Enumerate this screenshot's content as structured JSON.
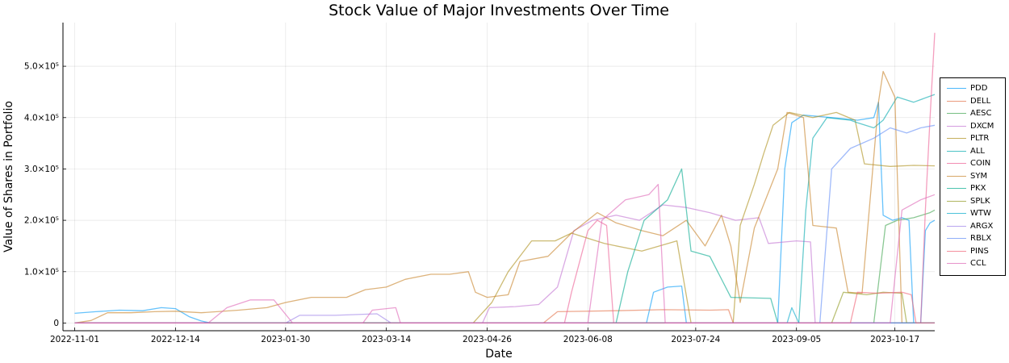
{
  "chart_data": {
    "type": "line",
    "title": "Stock Value of Major Investments Over Time",
    "xlabel": "Date",
    "ylabel": "Value of Shares in Portfolio",
    "x_range": [
      "2022-10-27",
      "2023-11-03"
    ],
    "ylim": [
      -15000,
      585000
    ],
    "x_ticks": [
      "2022-11-01",
      "2022-12-14",
      "2023-01-30",
      "2023-03-14",
      "2023-04-26",
      "2023-06-08",
      "2023-07-24",
      "2023-09-05",
      "2023-10-17"
    ],
    "y_ticks": [
      {
        "value": 0,
        "label": "0"
      },
      {
        "value": 100000,
        "label": "1.0×10⁵"
      },
      {
        "value": 200000,
        "label": "2.0×10⁵"
      },
      {
        "value": 300000,
        "label": "3.0×10⁵"
      },
      {
        "value": 400000,
        "label": "4.0×10⁵"
      },
      {
        "value": 500000,
        "label": "5.0×10⁵"
      }
    ],
    "grid": true,
    "legend_position": "right",
    "series": [
      {
        "name": "PDD",
        "color": "#009af9",
        "points": [
          [
            "2022-11-01",
            19000
          ],
          [
            "2022-11-10",
            22000
          ],
          [
            "2022-11-20",
            25000
          ],
          [
            "2022-11-30",
            24000
          ],
          [
            "2022-12-08",
            30000
          ],
          [
            "2022-12-14",
            28000
          ],
          [
            "2022-12-20",
            12000
          ],
          [
            "2022-12-25",
            4000
          ],
          [
            "2022-12-29",
            0
          ],
          [
            "2023-07-03",
            0
          ],
          [
            "2023-07-06",
            60000
          ],
          [
            "2023-07-12",
            70000
          ],
          [
            "2023-07-18",
            72000
          ],
          [
            "2023-07-20",
            0
          ],
          [
            "2023-08-28",
            0
          ],
          [
            "2023-08-31",
            300000
          ],
          [
            "2023-09-03",
            390000
          ],
          [
            "2023-09-08",
            405000
          ],
          [
            "2023-09-20",
            400000
          ],
          [
            "2023-10-01",
            395000
          ],
          [
            "2023-10-08",
            400000
          ],
          [
            "2023-10-10",
            430000
          ],
          [
            "2023-10-12",
            210000
          ],
          [
            "2023-10-16",
            200000
          ],
          [
            "2023-10-20",
            205000
          ],
          [
            "2023-10-23",
            200000
          ],
          [
            "2023-10-25",
            0
          ],
          [
            "2023-10-28",
            0
          ],
          [
            "2023-10-30",
            180000
          ],
          [
            "2023-11-01",
            195000
          ],
          [
            "2023-11-03",
            200000
          ]
        ]
      },
      {
        "name": "DELL",
        "color": "#e26f46",
        "points": [
          [
            "2022-11-01",
            0
          ],
          [
            "2023-05-20",
            0
          ],
          [
            "2023-05-26",
            22000
          ],
          [
            "2023-06-20",
            24000
          ],
          [
            "2023-07-10",
            26000
          ],
          [
            "2023-07-30",
            25000
          ],
          [
            "2023-08-07",
            26000
          ],
          [
            "2023-08-09",
            0
          ],
          [
            "2023-11-03",
            0
          ]
        ]
      },
      {
        "name": "AESC",
        "color": "#3da44d",
        "points": [
          [
            "2022-11-01",
            0
          ],
          [
            "2023-10-08",
            0
          ],
          [
            "2023-10-13",
            190000
          ],
          [
            "2023-10-18",
            200000
          ],
          [
            "2023-10-25",
            205000
          ],
          [
            "2023-11-01",
            215000
          ],
          [
            "2023-11-03",
            220000
          ]
        ]
      },
      {
        "name": "DXCM",
        "color": "#c271d2",
        "points": [
          [
            "2022-11-01",
            0
          ],
          [
            "2023-04-24",
            0
          ],
          [
            "2023-04-27",
            30000
          ],
          [
            "2023-05-08",
            32000
          ],
          [
            "2023-05-18",
            36000
          ],
          [
            "2023-05-26",
            70000
          ],
          [
            "2023-06-02",
            180000
          ],
          [
            "2023-06-10",
            200000
          ],
          [
            "2023-06-20",
            210000
          ],
          [
            "2023-06-30",
            200000
          ],
          [
            "2023-07-10",
            230000
          ],
          [
            "2023-07-20",
            225000
          ],
          [
            "2023-07-30",
            215000
          ],
          [
            "2023-08-10",
            200000
          ],
          [
            "2023-08-20",
            205000
          ],
          [
            "2023-08-24",
            155000
          ],
          [
            "2023-09-05",
            160000
          ],
          [
            "2023-09-11",
            158000
          ],
          [
            "2023-09-13",
            0
          ],
          [
            "2023-11-03",
            0
          ]
        ]
      },
      {
        "name": "PLTR",
        "color": "#ac8d18",
        "points": [
          [
            "2022-11-01",
            0
          ],
          [
            "2023-04-20",
            0
          ],
          [
            "2023-04-28",
            40000
          ],
          [
            "2023-05-05",
            100000
          ],
          [
            "2023-05-15",
            160000
          ],
          [
            "2023-05-25",
            160000
          ],
          [
            "2023-06-01",
            175000
          ],
          [
            "2023-06-15",
            155000
          ],
          [
            "2023-07-01",
            140000
          ],
          [
            "2023-07-16",
            160000
          ],
          [
            "2023-07-22",
            0
          ],
          [
            "2023-08-09",
            0
          ],
          [
            "2023-08-12",
            190000
          ],
          [
            "2023-08-18",
            270000
          ],
          [
            "2023-08-22",
            330000
          ],
          [
            "2023-08-26",
            385000
          ],
          [
            "2023-09-02",
            410000
          ],
          [
            "2023-09-12",
            400000
          ],
          [
            "2023-09-22",
            410000
          ],
          [
            "2023-09-30",
            395000
          ],
          [
            "2023-10-04",
            310000
          ],
          [
            "2023-10-15",
            305000
          ],
          [
            "2023-10-25",
            307000
          ],
          [
            "2023-11-03",
            306000
          ]
        ]
      },
      {
        "name": "ALL",
        "color": "#00a9ad",
        "points": [
          [
            "2022-11-01",
            0
          ],
          [
            "2023-09-06",
            0
          ],
          [
            "2023-09-09",
            220000
          ],
          [
            "2023-09-12",
            360000
          ],
          [
            "2023-09-18",
            400000
          ],
          [
            "2023-09-28",
            395000
          ],
          [
            "2023-10-01",
            390000
          ],
          [
            "2023-10-08",
            380000
          ],
          [
            "2023-10-12",
            395000
          ],
          [
            "2023-10-18",
            440000
          ],
          [
            "2023-10-25",
            430000
          ],
          [
            "2023-11-03",
            445000
          ]
        ]
      },
      {
        "name": "COIN",
        "color": "#ed5d92",
        "points": [
          [
            "2022-11-01",
            0
          ],
          [
            "2023-05-29",
            0
          ],
          [
            "2023-06-01",
            60000
          ],
          [
            "2023-06-08",
            180000
          ],
          [
            "2023-06-12",
            200000
          ],
          [
            "2023-06-16",
            190000
          ],
          [
            "2023-06-19",
            0
          ],
          [
            "2023-10-28",
            0
          ],
          [
            "2023-10-30",
            220000
          ],
          [
            "2023-11-01",
            400000
          ],
          [
            "2023-11-03",
            565000
          ]
        ]
      },
      {
        "name": "SYM",
        "color": "#c68125",
        "points": [
          [
            "2022-11-01",
            0
          ],
          [
            "2022-11-08",
            5000
          ],
          [
            "2022-11-15",
            20000
          ],
          [
            "2022-11-25",
            20000
          ],
          [
            "2022-12-05",
            22000
          ],
          [
            "2022-12-14",
            23000
          ],
          [
            "2022-12-25",
            20000
          ],
          [
            "2023-01-10",
            25000
          ],
          [
            "2023-01-22",
            30000
          ],
          [
            "2023-01-30",
            40000
          ],
          [
            "2023-02-10",
            50000
          ],
          [
            "2023-02-25",
            50000
          ],
          [
            "2023-03-05",
            65000
          ],
          [
            "2023-03-14",
            70000
          ],
          [
            "2023-03-22",
            85000
          ],
          [
            "2023-04-02",
            95000
          ],
          [
            "2023-04-10",
            95000
          ],
          [
            "2023-04-18",
            100000
          ],
          [
            "2023-04-21",
            60000
          ],
          [
            "2023-04-26",
            50000
          ],
          [
            "2023-05-05",
            55000
          ],
          [
            "2023-05-10",
            120000
          ],
          [
            "2023-05-22",
            130000
          ],
          [
            "2023-06-01",
            175000
          ],
          [
            "2023-06-12",
            215000
          ],
          [
            "2023-06-20",
            195000
          ],
          [
            "2023-07-01",
            180000
          ],
          [
            "2023-07-10",
            170000
          ],
          [
            "2023-07-20",
            200000
          ],
          [
            "2023-07-28",
            150000
          ],
          [
            "2023-08-04",
            210000
          ],
          [
            "2023-08-08",
            150000
          ],
          [
            "2023-08-12",
            40000
          ],
          [
            "2023-08-18",
            185000
          ],
          [
            "2023-08-28",
            300000
          ],
          [
            "2023-09-01",
            410000
          ],
          [
            "2023-09-08",
            400000
          ],
          [
            "2023-09-12",
            190000
          ],
          [
            "2023-09-22",
            185000
          ],
          [
            "2023-09-27",
            60000
          ],
          [
            "2023-10-03",
            58000
          ],
          [
            "2023-10-10",
            430000
          ],
          [
            "2023-10-12",
            490000
          ],
          [
            "2023-10-17",
            440000
          ],
          [
            "2023-10-20",
            0
          ],
          [
            "2023-11-03",
            0
          ]
        ]
      },
      {
        "name": "PKX",
        "color": "#00a98d",
        "points": [
          [
            "2022-11-01",
            0
          ],
          [
            "2023-06-20",
            0
          ],
          [
            "2023-06-25",
            100000
          ],
          [
            "2023-07-02",
            200000
          ],
          [
            "2023-07-12",
            240000
          ],
          [
            "2023-07-18",
            300000
          ],
          [
            "2023-07-22",
            140000
          ],
          [
            "2023-07-30",
            130000
          ],
          [
            "2023-08-08",
            50000
          ],
          [
            "2023-08-25",
            48000
          ],
          [
            "2023-08-28",
            0
          ],
          [
            "2023-11-03",
            0
          ]
        ]
      },
      {
        "name": "SPLK",
        "color": "#8e971d",
        "points": [
          [
            "2022-11-01",
            0
          ],
          [
            "2023-09-20",
            0
          ],
          [
            "2023-09-25",
            60000
          ],
          [
            "2023-10-05",
            55000
          ],
          [
            "2023-10-12",
            60000
          ],
          [
            "2023-10-20",
            58000
          ],
          [
            "2023-10-22",
            0
          ],
          [
            "2023-11-03",
            0
          ]
        ]
      },
      {
        "name": "WTW",
        "color": "#00a8cb",
        "points": [
          [
            "2022-11-01",
            0
          ],
          [
            "2023-09-01",
            0
          ],
          [
            "2023-09-03",
            30000
          ],
          [
            "2023-09-06",
            0
          ],
          [
            "2023-11-03",
            0
          ]
        ]
      },
      {
        "name": "ARGX",
        "color": "#9b7fe8",
        "points": [
          [
            "2022-11-01",
            0
          ],
          [
            "2023-01-30",
            0
          ],
          [
            "2023-02-05",
            15000
          ],
          [
            "2023-02-20",
            15000
          ],
          [
            "2023-03-10",
            18000
          ],
          [
            "2023-03-16",
            0
          ],
          [
            "2023-11-03",
            0
          ]
        ]
      },
      {
        "name": "RBLX",
        "color": "#608cf6",
        "points": [
          [
            "2022-11-01",
            0
          ],
          [
            "2023-09-15",
            0
          ],
          [
            "2023-09-20",
            300000
          ],
          [
            "2023-09-28",
            340000
          ],
          [
            "2023-10-08",
            360000
          ],
          [
            "2023-10-15",
            380000
          ],
          [
            "2023-10-22",
            370000
          ],
          [
            "2023-10-28",
            380000
          ],
          [
            "2023-11-03",
            385000
          ]
        ]
      },
      {
        "name": "PINS",
        "color": "#f05f73",
        "points": [
          [
            "2022-11-01",
            0
          ],
          [
            "2023-09-28",
            0
          ],
          [
            "2023-10-01",
            60000
          ],
          [
            "2023-10-10",
            58000
          ],
          [
            "2023-10-20",
            60000
          ],
          [
            "2023-10-24",
            55000
          ],
          [
            "2023-10-26",
            0
          ],
          [
            "2023-11-03",
            0
          ]
        ]
      },
      {
        "name": "CCL",
        "color": "#dd64b5",
        "points": [
          [
            "2022-11-01",
            0
          ],
          [
            "2022-12-28",
            0
          ],
          [
            "2023-01-05",
            30000
          ],
          [
            "2023-01-15",
            45000
          ],
          [
            "2023-01-25",
            45000
          ],
          [
            "2023-02-02",
            0
          ],
          [
            "2023-03-04",
            0
          ],
          [
            "2023-03-08",
            25000
          ],
          [
            "2023-03-18",
            30000
          ],
          [
            "2023-03-20",
            0
          ],
          [
            "2023-06-08",
            0
          ],
          [
            "2023-06-14",
            200000
          ],
          [
            "2023-06-24",
            240000
          ],
          [
            "2023-07-04",
            250000
          ],
          [
            "2023-07-08",
            270000
          ],
          [
            "2023-07-11",
            0
          ],
          [
            "2023-10-15",
            0
          ],
          [
            "2023-10-20",
            220000
          ],
          [
            "2023-10-28",
            240000
          ],
          [
            "2023-11-03",
            250000
          ]
        ]
      }
    ]
  }
}
